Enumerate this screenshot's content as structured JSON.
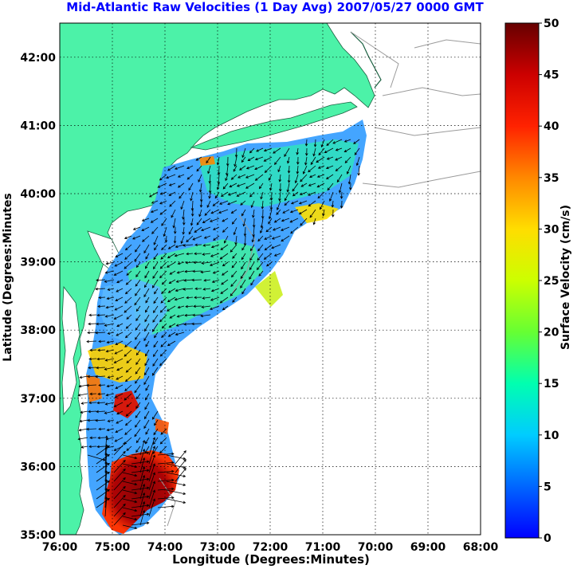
{
  "title": "Mid-Atlantic Raw Velocities (1 Day Avg) 2007/05/27 0000 GMT",
  "xlabel": "Longitude (Degrees:Minutes)",
  "ylabel": "Latitude (Degrees:Minutes",
  "colorbar_label": "Surface Velocity (cm/s)",
  "x_ticks": [
    "76:00",
    "75:00",
    "74:00",
    "73:00",
    "72:00",
    "71:00",
    "70:00",
    "69:00",
    "68:00"
  ],
  "y_ticks": [
    "35:00",
    "36:00",
    "37:00",
    "38:00",
    "39:00",
    "40:00",
    "41:00",
    "42:00"
  ],
  "colorbar_ticks": [
    "0",
    "5",
    "10",
    "15",
    "20",
    "25",
    "30",
    "35",
    "40",
    "45",
    "50"
  ],
  "colors": {
    "land": "#4cf2a8",
    "title": "#0000ff",
    "grid": "#000000",
    "bathymetry": "#9a9a9a",
    "arrows": "#000000",
    "colormap": [
      "#0000ff",
      "#00aaff",
      "#00ffff",
      "#00ff66",
      "#ccff00",
      "#ffff00",
      "#ffaa00",
      "#ff4400",
      "#ff0000",
      "#aa0000",
      "#660000"
    ]
  },
  "chart_data": {
    "type": "map",
    "projection": "lon-lat",
    "xlim": [
      -76,
      -68
    ],
    "ylim": [
      35,
      42.5
    ],
    "grid": true,
    "colorbar": {
      "min": 0,
      "max": 50,
      "units": "cm/s",
      "placement": "right"
    },
    "map_labels": []
  }
}
